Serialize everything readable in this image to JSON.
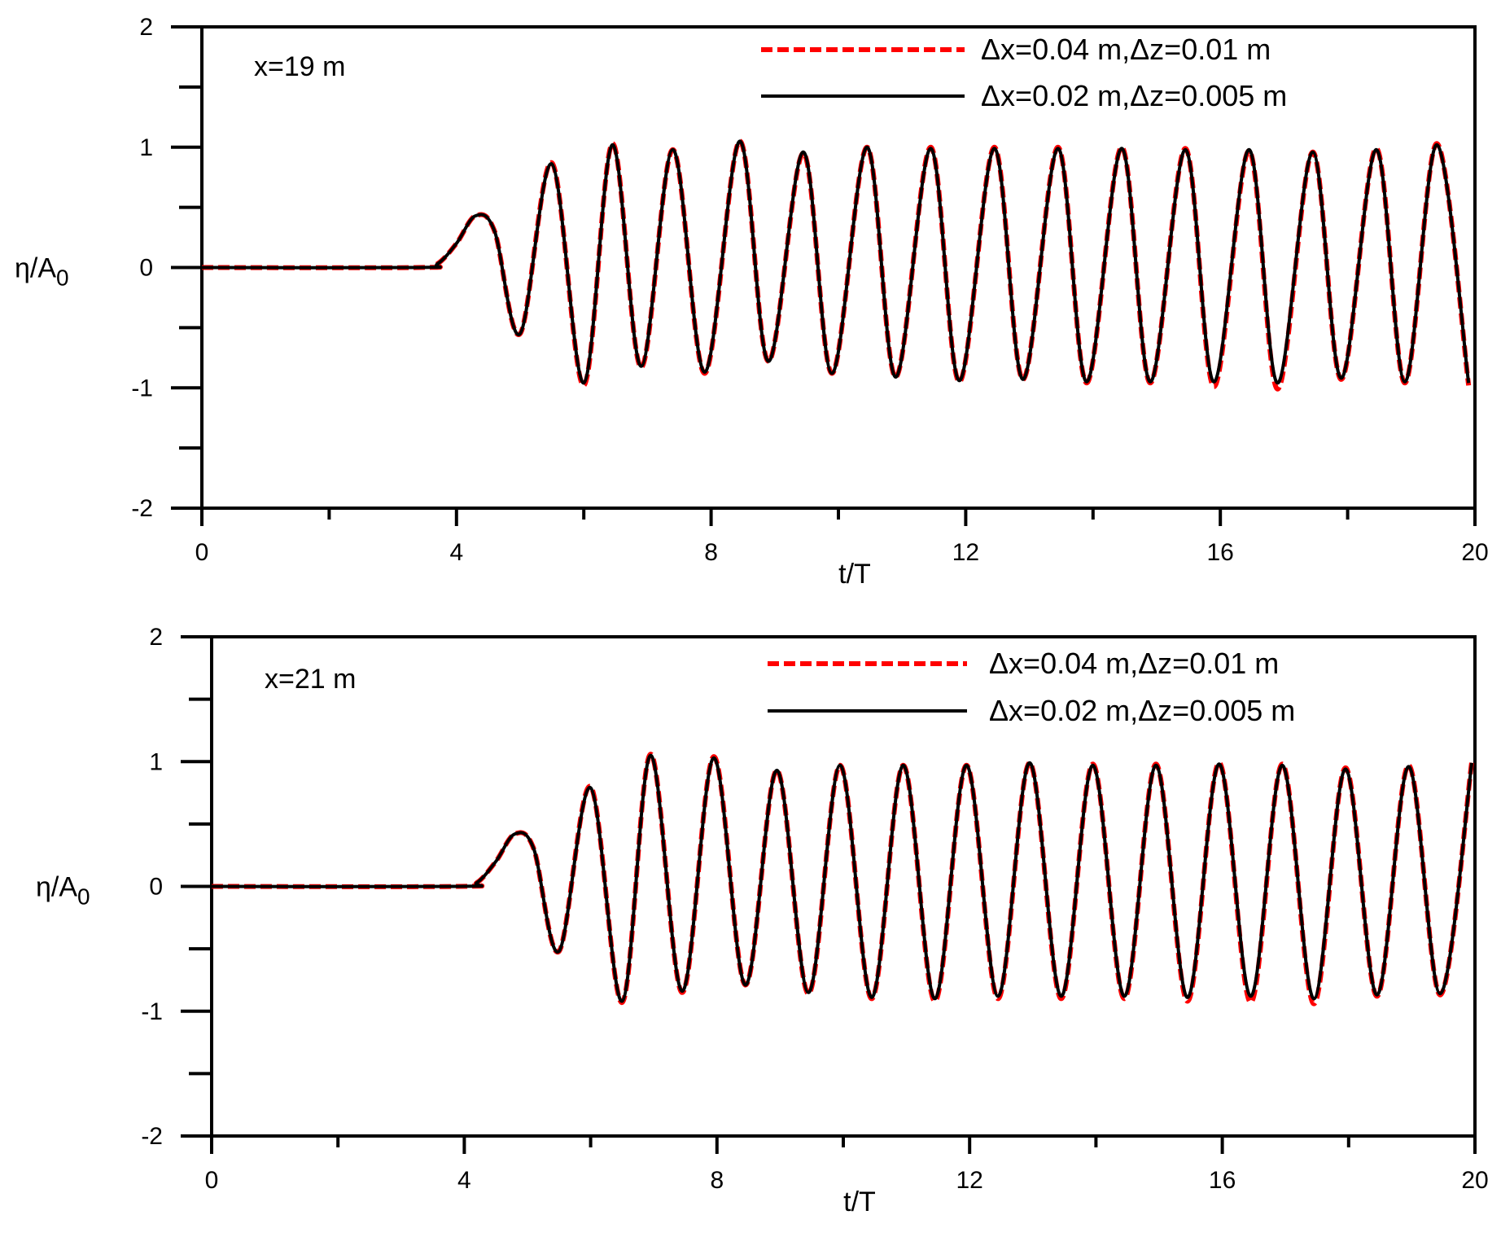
{
  "colors": {
    "red": "#ff0000",
    "black": "#000000",
    "background": "#ffffff"
  },
  "chart_data": [
    {
      "type": "line",
      "annotation": "x=19 m",
      "xlabel": "t/T",
      "ylabel": {
        "base": "η/A",
        "sub": "0"
      },
      "xlim": [
        0,
        20
      ],
      "ylim": [
        -2,
        2
      ],
      "xticks": [
        0,
        4,
        8,
        12,
        16,
        20
      ],
      "xticks_minor": [
        2,
        6,
        10,
        14,
        18
      ],
      "yticks": [
        -2,
        -1,
        0,
        1,
        2
      ],
      "yticks_minor": [
        -1.5,
        -0.5,
        0.5,
        1.5
      ],
      "grid": false,
      "legend_position": "top-right",
      "series": [
        {
          "name": "Δx=0.04 m,Δz=0.01 m",
          "color": "#ff0000",
          "style": "dashed",
          "x": [
            0,
            3.4,
            3.7,
            4.0,
            4.3,
            4.6,
            5.0,
            5.5,
            6.0,
            6.45,
            6.9,
            7.4,
            7.9,
            8.45,
            8.9,
            9.45,
            9.9,
            10.45,
            10.9,
            11.45,
            11.9,
            12.45,
            12.9,
            13.45,
            13.9,
            14.45,
            14.9,
            15.45,
            15.9,
            16.45,
            16.9,
            17.45,
            17.9,
            18.45,
            18.9,
            19.4,
            19.9
          ],
          "y": [
            0,
            0,
            0.03,
            0.2,
            0.43,
            0.3,
            -0.55,
            0.87,
            -0.98,
            1.03,
            -0.83,
            0.98,
            -0.88,
            1.05,
            -0.78,
            0.95,
            -0.88,
            1.0,
            -0.91,
            1.0,
            -0.95,
            1.0,
            -0.93,
            1.0,
            -0.96,
            1.0,
            -0.96,
            0.99,
            -0.99,
            0.97,
            -1.01,
            0.96,
            -0.93,
            0.99,
            -0.96,
            1.03,
            -0.98
          ]
        },
        {
          "name": "Δx=0.02 m,Δz=0.005 m",
          "color": "#000000",
          "style": "solid",
          "x": [
            0,
            3.4,
            3.7,
            4.0,
            4.3,
            4.6,
            5.0,
            5.5,
            6.0,
            6.45,
            6.9,
            7.4,
            7.9,
            8.45,
            8.9,
            9.45,
            9.9,
            10.45,
            10.9,
            11.45,
            11.9,
            12.45,
            12.9,
            13.45,
            13.9,
            14.45,
            14.9,
            15.45,
            15.9,
            16.45,
            16.9,
            17.45,
            17.9,
            18.45,
            18.9,
            19.4,
            19.9
          ],
          "y": [
            0,
            0,
            0.03,
            0.2,
            0.43,
            0.3,
            -0.55,
            0.86,
            -0.96,
            1.02,
            -0.82,
            0.98,
            -0.87,
            1.05,
            -0.78,
            0.96,
            -0.88,
            1.0,
            -0.91,
            0.99,
            -0.94,
            0.99,
            -0.93,
            0.99,
            -0.95,
            0.99,
            -0.95,
            0.98,
            -0.95,
            0.98,
            -0.96,
            0.96,
            -0.92,
            0.98,
            -0.95,
            1.02,
            -0.96
          ]
        }
      ]
    },
    {
      "type": "line",
      "annotation": "x=21 m",
      "xlabel": "t/T",
      "ylabel": {
        "base": "η/A",
        "sub": "0"
      },
      "xlim": [
        0,
        20
      ],
      "ylim": [
        -2,
        2
      ],
      "xticks": [
        0,
        4,
        8,
        12,
        16,
        20
      ],
      "xticks_minor": [
        2,
        6,
        10,
        14,
        18
      ],
      "yticks": [
        -2,
        -1,
        0,
        1,
        2
      ],
      "yticks_minor": [
        -1.5,
        -0.5,
        0.5,
        1.5
      ],
      "grid": false,
      "legend_position": "top-right",
      "series": [
        {
          "name": "Δx=0.04 m,Δz=0.01 m",
          "color": "#ff0000",
          "style": "dashed",
          "x": [
            0,
            3.9,
            4.2,
            4.5,
            4.8,
            5.1,
            5.5,
            6.0,
            6.5,
            6.95,
            7.45,
            7.95,
            8.45,
            8.95,
            9.45,
            9.95,
            10.45,
            10.95,
            11.45,
            11.95,
            12.45,
            12.95,
            13.45,
            13.95,
            14.45,
            14.95,
            15.45,
            15.95,
            16.45,
            16.95,
            17.45,
            17.95,
            18.45,
            18.95,
            19.45,
            19.95
          ],
          "y": [
            0,
            0,
            0.03,
            0.2,
            0.42,
            0.3,
            -0.52,
            0.8,
            -0.93,
            1.06,
            -0.85,
            1.04,
            -0.79,
            0.93,
            -0.86,
            0.97,
            -0.9,
            0.97,
            -0.92,
            0.97,
            -0.9,
            0.99,
            -0.9,
            0.98,
            -0.9,
            0.98,
            -0.92,
            0.99,
            -0.93,
            0.98,
            -0.94,
            0.95,
            -0.88,
            0.97,
            -0.87,
            1.0
          ]
        },
        {
          "name": "Δx=0.02 m,Δz=0.005 m",
          "color": "#000000",
          "style": "solid",
          "x": [
            0,
            3.9,
            4.2,
            4.5,
            4.8,
            5.1,
            5.5,
            6.0,
            6.5,
            6.95,
            7.45,
            7.95,
            8.45,
            8.95,
            9.45,
            9.95,
            10.45,
            10.95,
            11.45,
            11.95,
            12.45,
            12.95,
            13.45,
            13.95,
            14.45,
            14.95,
            15.45,
            15.95,
            16.45,
            16.95,
            17.45,
            17.95,
            18.45,
            18.95,
            19.45,
            19.95
          ],
          "y": [
            0,
            0,
            0.03,
            0.2,
            0.42,
            0.3,
            -0.52,
            0.79,
            -0.92,
            1.05,
            -0.84,
            1.03,
            -0.79,
            0.93,
            -0.85,
            0.97,
            -0.89,
            0.97,
            -0.9,
            0.97,
            -0.88,
            0.99,
            -0.88,
            0.97,
            -0.88,
            0.97,
            -0.89,
            0.98,
            -0.88,
            0.97,
            -0.9,
            0.94,
            -0.87,
            0.96,
            -0.86,
            0.99
          ]
        }
      ]
    }
  ]
}
